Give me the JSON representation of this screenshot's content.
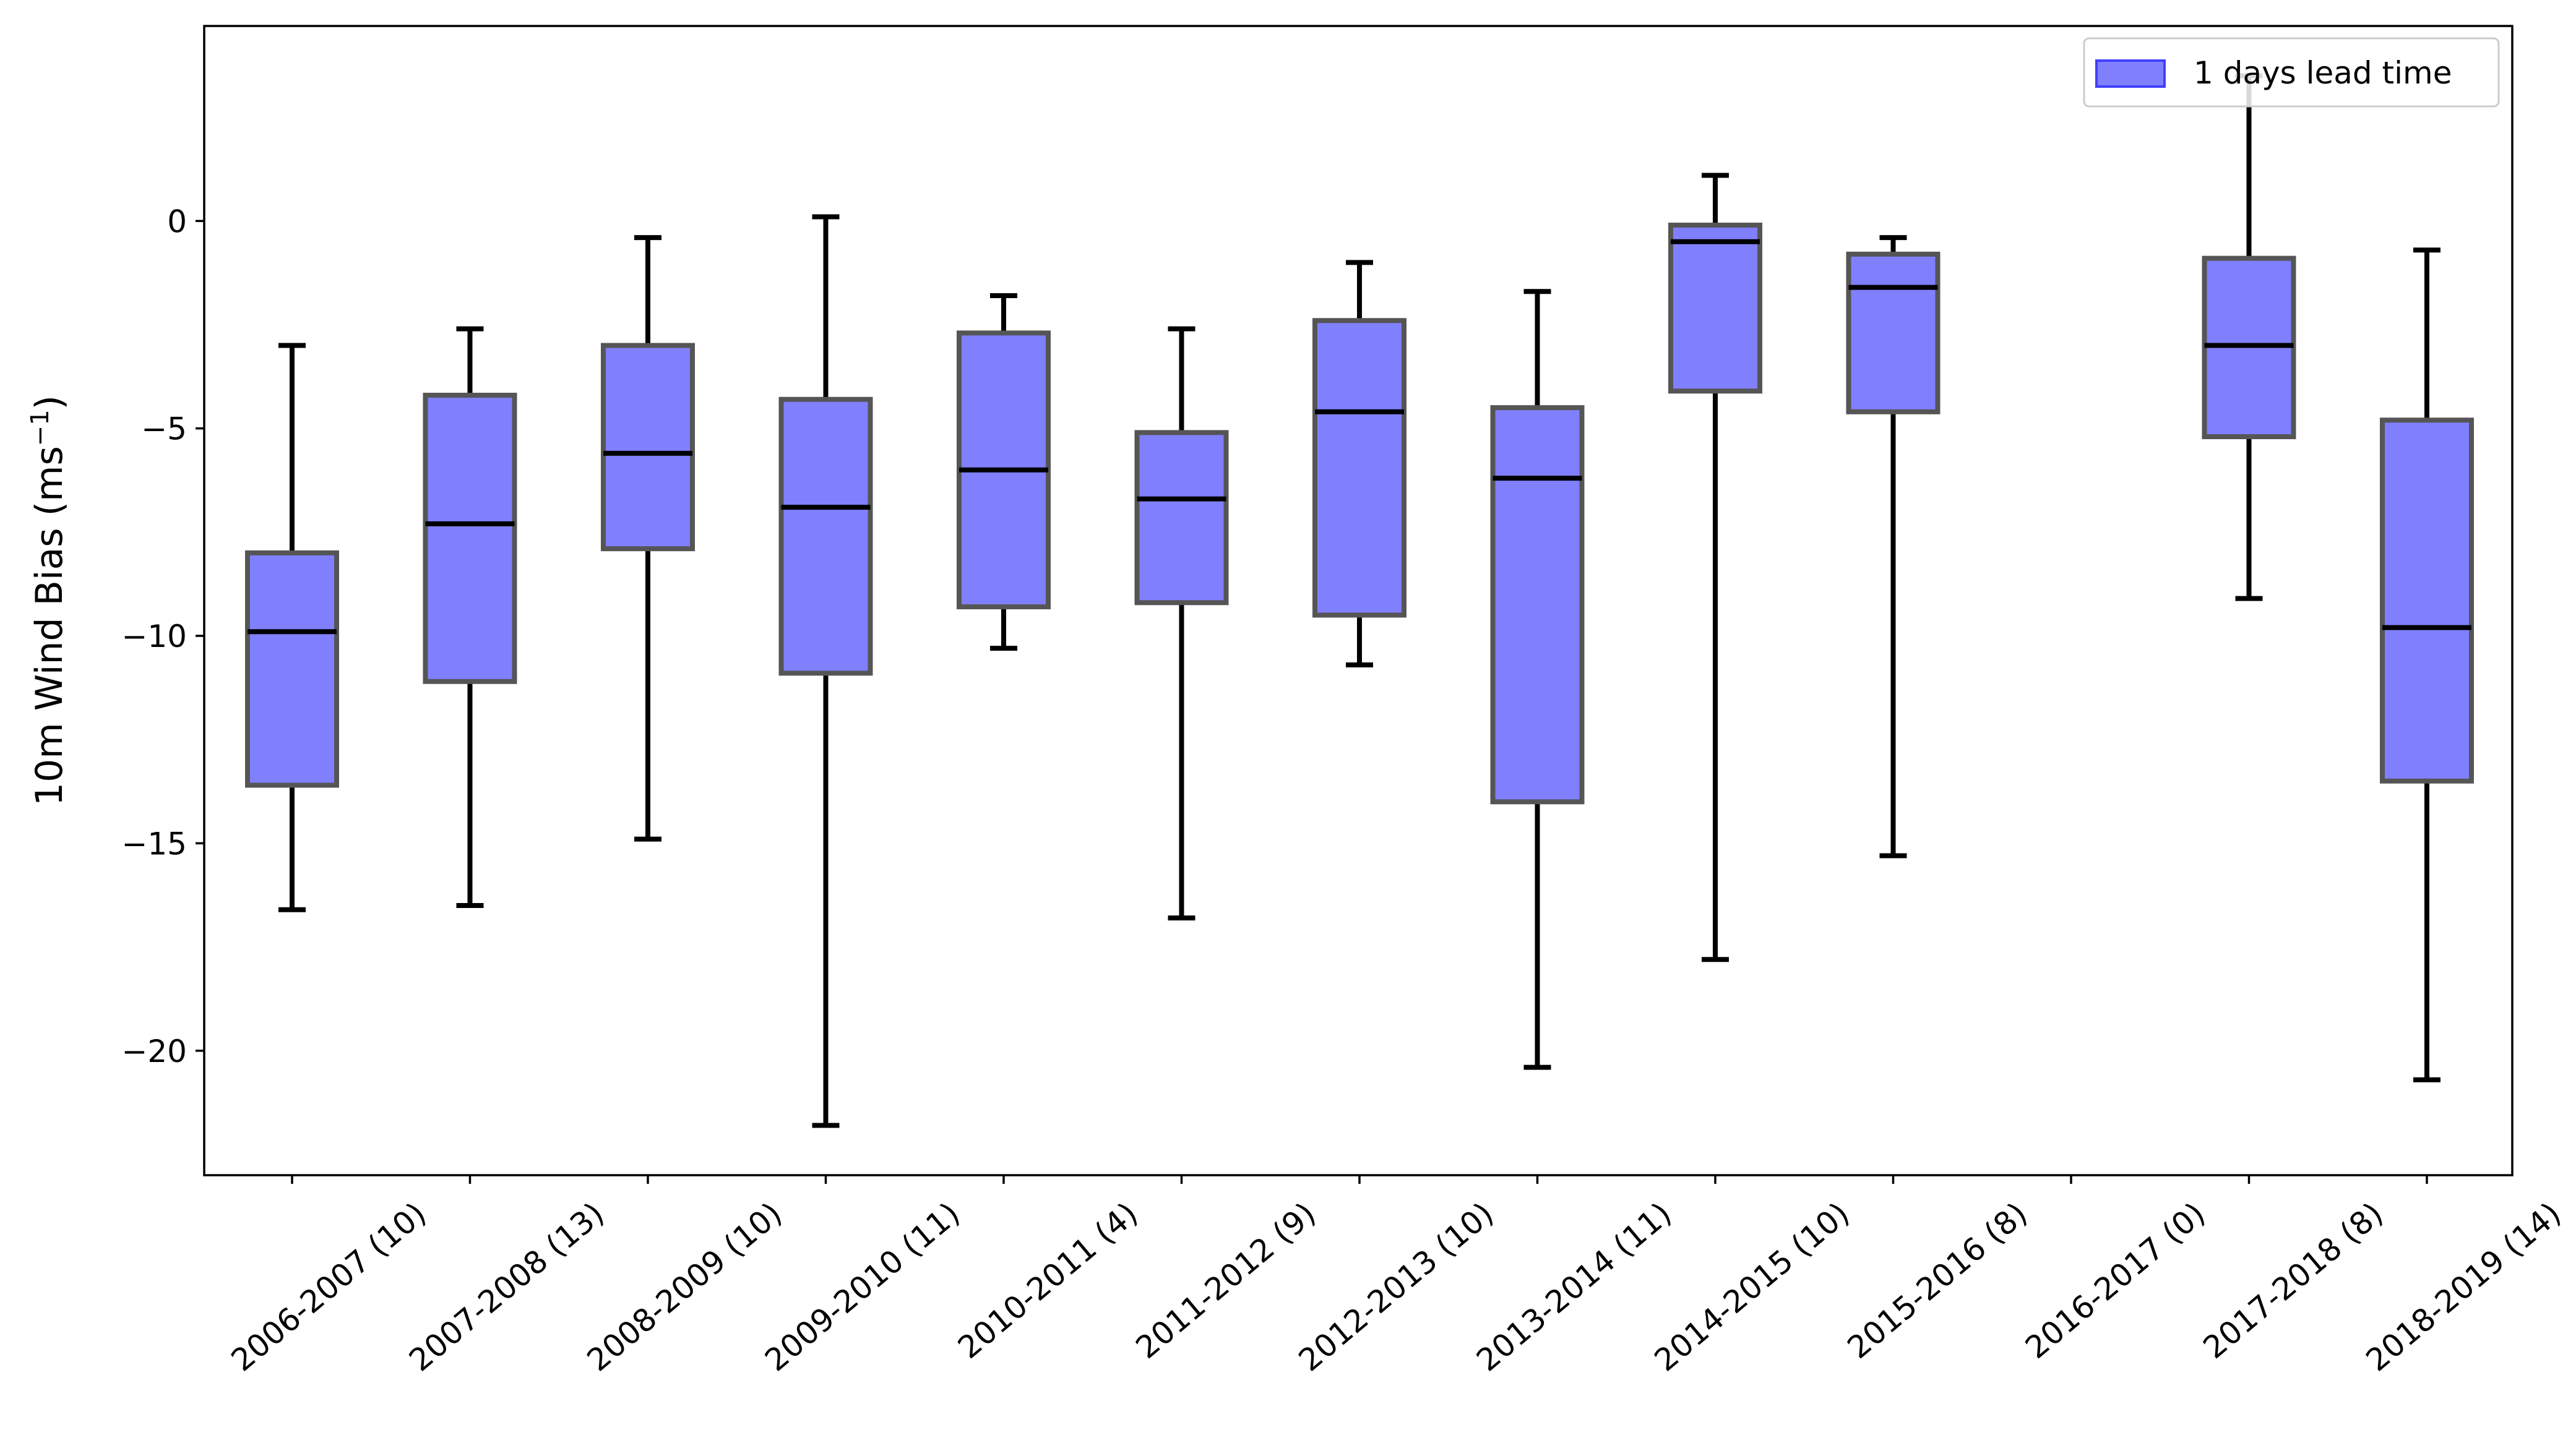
{
  "chart_data": {
    "type": "boxplot",
    "ylabel": "10m Wind Bias (ms",
    "ylabel_superscript": "−1",
    "ylabel_close": ")",
    "ylim": [
      -23,
      4.7
    ],
    "yticks": [
      0,
      -5,
      -10,
      -15,
      -20
    ],
    "ytick_labels": [
      "0",
      "−5",
      "−10",
      "−15",
      "−20"
    ],
    "grid": false,
    "legend": {
      "label": "1 days lead time",
      "placement": "top-right"
    },
    "colors": {
      "box_fill": "#8080ff",
      "box_edge": "#555555",
      "whisker": "#000000",
      "legend_edge": "#4040ff"
    },
    "categories": [
      "2006-2007 (10)",
      "2007-2008 (13)",
      "2008-2009 (10)",
      "2009-2010 (11)",
      "2010-2011 (4)",
      "2011-2012 (9)",
      "2012-2013 (10)",
      "2013-2014 (11)",
      "2014-2015 (10)",
      "2015-2016 (8)",
      "2016-2017 (0)",
      "2017-2018 (8)",
      "2018-2019 (14)"
    ],
    "boxes": [
      {
        "whislo": -16.6,
        "q1": -13.6,
        "med": -9.9,
        "q3": -8.0,
        "whishi": -3.0
      },
      {
        "whislo": -16.5,
        "q1": -11.1,
        "med": -7.3,
        "q3": -4.2,
        "whishi": -2.6
      },
      {
        "whislo": -14.9,
        "q1": -7.9,
        "med": -5.6,
        "q3": -3.0,
        "whishi": -0.4
      },
      {
        "whislo": -21.8,
        "q1": -10.9,
        "med": -6.9,
        "q3": -4.3,
        "whishi": 0.1
      },
      {
        "whislo": -10.3,
        "q1": -9.3,
        "med": -6.0,
        "q3": -2.7,
        "whishi": -1.8
      },
      {
        "whislo": -16.8,
        "q1": -9.2,
        "med": -6.7,
        "q3": -5.1,
        "whishi": -2.6
      },
      {
        "whislo": -10.7,
        "q1": -9.5,
        "med": -4.6,
        "q3": -2.4,
        "whishi": -1.0
      },
      {
        "whislo": -20.4,
        "q1": -14.0,
        "med": -6.2,
        "q3": -4.5,
        "whishi": -1.7
      },
      {
        "whislo": -17.8,
        "q1": -4.1,
        "med": -0.5,
        "q3": -0.1,
        "whishi": 1.1
      },
      {
        "whislo": -15.3,
        "q1": -4.6,
        "med": -1.6,
        "q3": -0.8,
        "whishi": -0.4
      },
      null,
      {
        "whislo": -9.1,
        "q1": -5.2,
        "med": -3.0,
        "q3": -0.9,
        "whishi": 3.5
      },
      {
        "whislo": -20.7,
        "q1": -13.5,
        "med": -9.8,
        "q3": -4.8,
        "whishi": -0.7
      }
    ]
  }
}
